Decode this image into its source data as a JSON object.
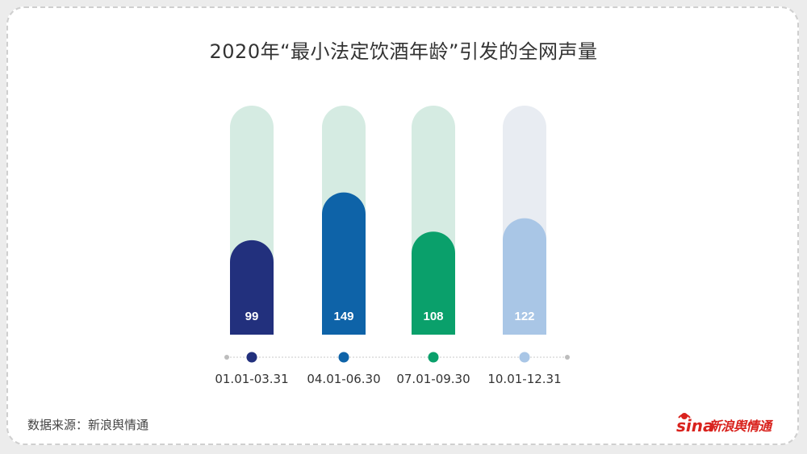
{
  "title": "2020年“最小法定饮酒年龄”引发的全网声量",
  "source": "数据来源：新浪舆情通",
  "brand": {
    "wordmark": "sina",
    "name": "新浪舆情通",
    "color": "#d9231e"
  },
  "chart_data": {
    "type": "bar",
    "categories": [
      "01.01-03.31",
      "04.01-06.30",
      "07.01-09.30",
      "10.01-12.31"
    ],
    "values": [
      99,
      149,
      108,
      122
    ],
    "colors": [
      "#22307d",
      "#0e63a8",
      "#0aa06b",
      "#a9c6e6"
    ],
    "track_colors": [
      "#d5ebe2",
      "#d5ebe2",
      "#d5ebe2",
      "#e8ecf2"
    ],
    "ylim": [
      0,
      240
    ],
    "title": "2020年“最小法定饮酒年龄”引发的全网声量",
    "xlabel": "",
    "ylabel": "",
    "grid": false,
    "legend": "none"
  }
}
